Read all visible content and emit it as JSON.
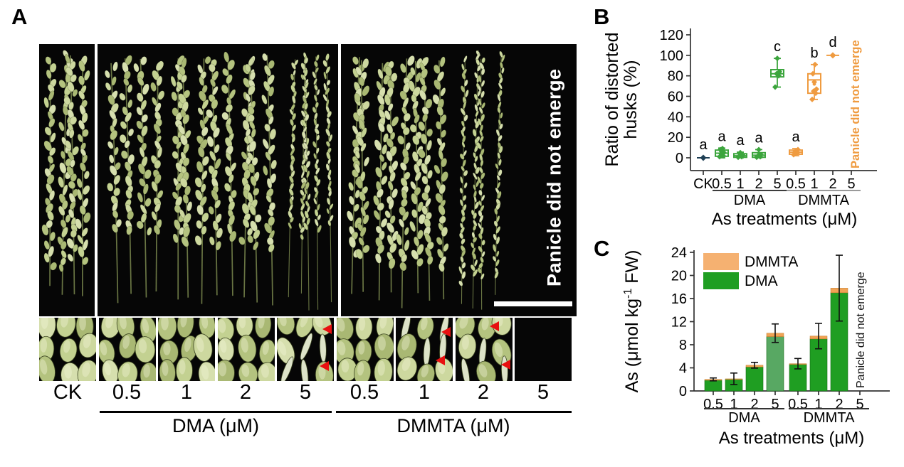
{
  "panels": {
    "a": {
      "label": "A",
      "overlay_text": "Panicle did not emerge",
      "treatment_labels": [
        "CK",
        "0.5",
        "1",
        "2",
        "5",
        "0.5",
        "1",
        "2",
        "5"
      ],
      "dma_group_label": "DMA (μM)",
      "dmmta_group_label": "DMMTA (μM)",
      "arrow_tiles": {
        "4": 2,
        "6": 2,
        "7": 2
      }
    },
    "b": {
      "label": "B"
    },
    "c": {
      "label": "C"
    }
  },
  "colors": {
    "box_green": "#3ca53d",
    "box_orange": "#ef9b40",
    "ck_point": "#1e3f54",
    "bar_green": "#1f9e22",
    "bar_green_light": "#58a863",
    "bar_orange_cap": "#f0a355",
    "legend_orange": "#f5b171",
    "arrow_red": "#e81010",
    "scale_bar": "#ffffff",
    "axis": "#333333"
  },
  "chart_data": [
    {
      "panel": "B",
      "type": "box",
      "ylabel_lines": [
        "Ratio of distorted",
        "husks (%)"
      ],
      "xlabel": "As treatments (μM)",
      "ylim": [
        0,
        120
      ],
      "yticks": [
        0,
        20,
        40,
        60,
        80,
        100,
        120
      ],
      "categories": [
        "CK",
        "0.5",
        "1",
        "2",
        "5",
        "0.5",
        "1",
        "2",
        "5"
      ],
      "groups": [
        {
          "label": "DMA",
          "from": 1,
          "to": 4,
          "line_color": "#3c3c3c"
        },
        {
          "label": "DMMTA",
          "from": 5,
          "to": 8,
          "line_color": "#9a9a9a"
        }
      ],
      "no_data_label": "Panicle did not emerge",
      "boxes": [
        {
          "category": "CK",
          "group": "CK",
          "style": "point",
          "value": 0,
          "letter": "a",
          "color": "#1e3f54"
        },
        {
          "category": "0.5",
          "group": "DMA",
          "style": "box",
          "low": 0,
          "q1": 1.5,
          "median": 4.5,
          "mean": 4.5,
          "q3": 7.5,
          "high": 9.5,
          "points": [
            1,
            2,
            4,
            5,
            6,
            8,
            9
          ],
          "letter": "a",
          "color": "#3ca53d"
        },
        {
          "category": "1",
          "group": "DMA",
          "style": "box",
          "low": 0,
          "q1": 0.5,
          "median": 2,
          "mean": 2.3,
          "q3": 4,
          "high": 5.5,
          "points": [
            0.5,
            1,
            2,
            3,
            5
          ],
          "letter": "a",
          "color": "#3ca53d"
        },
        {
          "category": "2",
          "group": "DMA",
          "style": "box",
          "low": 0,
          "q1": 0.5,
          "median": 2.5,
          "mean": 3,
          "q3": 5,
          "high": 8,
          "points": [
            0.5,
            1,
            2,
            3,
            8
          ],
          "letter": "a",
          "color": "#3ca53d"
        },
        {
          "category": "5",
          "group": "DMA",
          "style": "box",
          "low": 69,
          "q1": 79,
          "median": 82,
          "mean": 82.5,
          "q3": 86,
          "high": 97,
          "points": [
            69,
            80,
            82,
            84,
            97
          ],
          "letter": "c",
          "color": "#3ca53d"
        },
        {
          "category": "0.5",
          "group": "DMMTA",
          "style": "box",
          "low": 2,
          "q1": 3.5,
          "median": 5.5,
          "mean": 5.5,
          "q3": 7.5,
          "high": 9,
          "points": [
            3,
            5,
            6,
            8
          ],
          "letter": "a",
          "color": "#ef9b40"
        },
        {
          "category": "1",
          "group": "DMMTA",
          "style": "box",
          "low": 57,
          "q1": 63,
          "median": 76,
          "mean": 72,
          "q3": 82,
          "high": 91,
          "points": [
            57,
            63,
            65,
            67,
            74,
            82,
            91
          ],
          "letter": "b",
          "color": "#ef9b40"
        },
        {
          "category": "2",
          "group": "DMMTA",
          "style": "point",
          "value": 100,
          "letter": "d",
          "color": "#ef9b40"
        },
        {
          "category": "5",
          "group": "DMMTA",
          "style": "none",
          "letter": "",
          "color": "#ef9b40"
        }
      ]
    },
    {
      "panel": "C",
      "type": "bar",
      "stacked": true,
      "ylabel": "As (μmol kg-1 FW)",
      "ylabel_parts": [
        "As (μmol kg",
        "-1",
        " FW)"
      ],
      "xlabel": "As treatments (μM)",
      "ylim": [
        0,
        24
      ],
      "yticks": [
        0,
        4,
        8,
        12,
        16,
        20,
        24
      ],
      "categories": [
        "0.5",
        "1",
        "2",
        "5",
        "0.5",
        "1",
        "2",
        "5"
      ],
      "groups": [
        {
          "label": "DMA",
          "from": 0,
          "to": 3,
          "line_color": "#333333"
        },
        {
          "label": "DMMTA",
          "from": 4,
          "to": 7,
          "line_color": "#333333"
        }
      ],
      "legend": [
        {
          "label": "DMMTA",
          "color": "#f5b171"
        },
        {
          "label": "DMA",
          "color": "#1f9e22"
        }
      ],
      "no_data_label": "Panicle did not emerge",
      "bars": [
        {
          "category": "0.5",
          "group": "DMA",
          "dma": 1.85,
          "dmmta": 0.15,
          "total": 2.0,
          "err": 0.25
        },
        {
          "category": "1",
          "group": "DMA",
          "dma": 2.0,
          "dmmta": 0.1,
          "total": 2.1,
          "err": 1.0
        },
        {
          "category": "2",
          "group": "DMA",
          "dma": 4.15,
          "dmmta": 0.3,
          "total": 4.45,
          "err": 0.5
        },
        {
          "category": "5",
          "group": "DMA",
          "dma": 9.4,
          "dmmta": 0.6,
          "total": 10.0,
          "err": 1.6,
          "light": true
        },
        {
          "category": "0.5",
          "group": "DMMTA",
          "dma": 4.6,
          "dmmta": 0.12,
          "total": 4.72,
          "err": 0.9
        },
        {
          "category": "1",
          "group": "DMMTA",
          "dma": 9.0,
          "dmmta": 0.5,
          "total": 9.5,
          "err": 2.2
        },
        {
          "category": "2",
          "group": "DMMTA",
          "dma": 17.0,
          "dmmta": 0.8,
          "total": 17.8,
          "err": 5.7
        },
        {
          "category": "5",
          "group": "DMMTA",
          "no_data": true
        }
      ]
    }
  ]
}
